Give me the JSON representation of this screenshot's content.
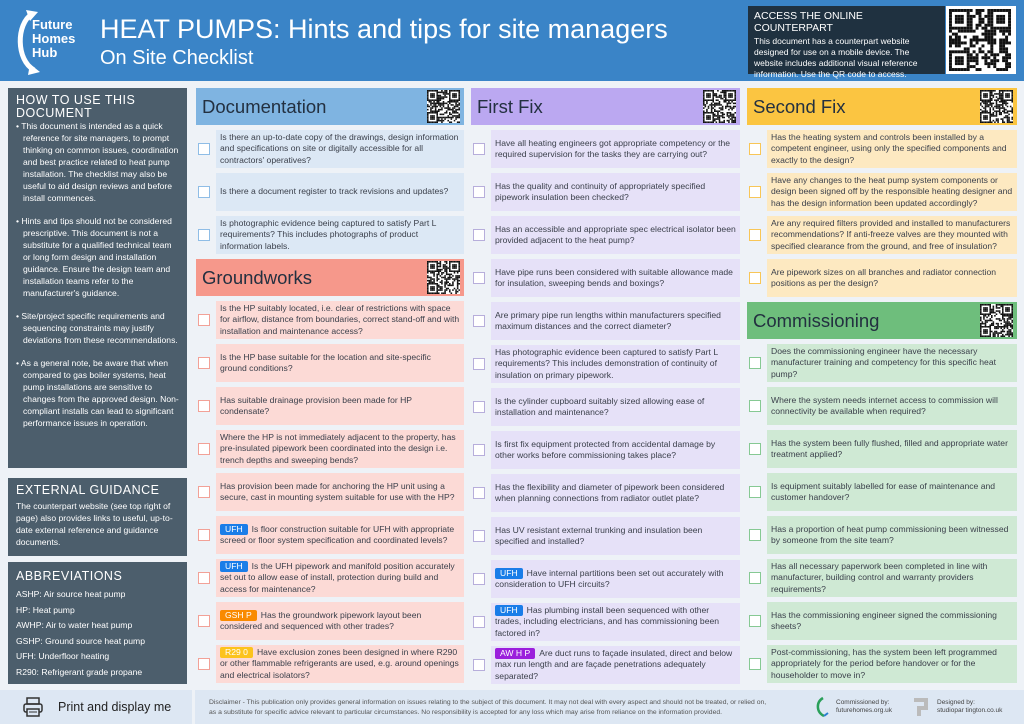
{
  "header": {
    "logo_text": "Future Homes Hub",
    "title": "HEAT PUMPS: Hints and tips for site managers",
    "subtitle": "On Site Checklist",
    "online": {
      "title": "ACCESS THE ONLINE COUNTERPART",
      "text": "This document has a counterpart website designed for use on a mobile device. The website includes additional visual reference information. Use the QR code to access."
    }
  },
  "sidebar": {
    "how": {
      "title": "HOW TO USE THIS DOCUMENT",
      "bullets": [
        "• This document is intended as a quick reference for site managers, to prompt thinking on common issues, coordination and best practice related to heat pump installation. The checklist may also be useful to aid design reviews and before install commences.",
        "• Hints and tips should not be considered prescriptive. This document is not a substitute for a qualified technical team or long form design and installation guidance. Ensure the design team and installation teams refer to the manufacturer's guidance.",
        "• Site/project specific requirements and sequencing constraints may justify deviations from these recommendations.",
        "• As a general note, be aware that when compared to gas boiler systems, heat pump installations are sensitive to changes from the approved design. Non-compliant installs can lead to significant performance issues in operation."
      ]
    },
    "external": {
      "title": "EXTERNAL GUIDANCE",
      "text": "The counterpart website (see top right of page) also provides links to useful, up-to-date external reference and guidance documents."
    },
    "abbrev": {
      "title": "ABBREVIATIONS",
      "items": [
        "ASHP: Air source heat pump",
        "HP: Heat pump",
        "AWHP: Air to water heat pump",
        "GSHP: Ground source heat pump",
        "UFH: Underfloor heating",
        "R290: Refrigerant grade propane"
      ]
    },
    "print_label": "Print and display me"
  },
  "tag_colors": {
    "UFH": "#1a7de8",
    "GSH P": "#f98a00",
    "R29 0": "#fcc31d",
    "AW H P": "#9b1fdc"
  },
  "columns": [
    {
      "sections": [
        {
          "title": "Documentation",
          "head": "#7fb4e1",
          "bg": "#dce8f5",
          "box": "#8fbde6",
          "items": [
            {
              "text": "Is there an up-to-date copy of the drawings, design information and specifications on site or digitally accessible for all contractors' operatives?"
            },
            {
              "text": "Is there a document register to track revisions and updates?"
            },
            {
              "text": "Is photographic evidence being captured to satisfy Part L requirements? This includes photographs of product information labels."
            }
          ]
        },
        {
          "title": "Groundworks",
          "head": "#f6988b",
          "bg": "#fcdad6",
          "box": "#f2a197",
          "items": [
            {
              "text": "Is the HP suitably located, i.e. clear of restrictions with space for airflow, distance from boundaries, correct stand-off and with installation and maintenance access?"
            },
            {
              "text": "Is the HP base suitable for the location and site-specific ground conditions?"
            },
            {
              "text": "Has suitable drainage provision been made for HP condensate?"
            },
            {
              "text": "Where the HP is not immediately adjacent to the property, has pre-insulated pipework been coordinated into the design i.e. trench depths and sweeping bends?"
            },
            {
              "text": "Has provision been made for anchoring the HP unit using a secure, cast in mounting system suitable for use with the HP?"
            },
            {
              "tag": "UFH",
              "text": "Is floor construction suitable for UFH with appropriate screed or floor system specification and coordinated levels?"
            },
            {
              "tag": "UFH",
              "text": "Is the UFH pipework and manifold position accurately set out to allow ease of install, protection during build and access for maintenance?"
            },
            {
              "tag": "GSH P",
              "text": "Has the groundwork pipework layout been considered and sequenced with other trades?"
            },
            {
              "tag": "R29 0",
              "text": "Have exclusion zones been designed in where R290 or other flammable refrigerants are used, e.g. around openings and electrical isolators?"
            }
          ]
        }
      ]
    },
    {
      "sections": [
        {
          "title": "First Fix",
          "head": "#bba8f1",
          "bg": "#e6e1f8",
          "box": "#b7aedb",
          "items": [
            {
              "text": "Have all heating engineers got appropriate competency or the required supervision for the tasks they are carrying out?"
            },
            {
              "text": "Has the quality and continuity of appropriately specified pipework insulation been checked?"
            },
            {
              "text": "Has an accessible and appropriate spec electrical isolator been provided adjacent to the heat pump?"
            },
            {
              "text": "Have pipe runs been considered with suitable allowance made for insulation, sweeping bends and boxings?"
            },
            {
              "text": "Are primary pipe run lengths within manufacturers specified maximum distances and the correct diameter?"
            },
            {
              "text": "Has photographic evidence been captured to satisfy Part L requirements? This includes demonstration of continuity of insulation on primary pipework."
            },
            {
              "text": "Is the cylinder cupboard suitably sized allowing ease of installation and maintenance?"
            },
            {
              "text": "Is first fix equipment protected from accidental damage by other works before commissioning takes place?"
            },
            {
              "text": "Has the flexibility and diameter of pipework been considered when planning connections from radiator outlet plate?"
            },
            {
              "text": "Has UV resistant external trunking and insulation been specified and installed?"
            },
            {
              "tag": "UFH",
              "text": "Have internal partitions been set out accurately with consideration to UFH circuits?"
            },
            {
              "tag": "UFH",
              "text": "Has plumbing install been sequenced with other trades, including electricians, and has commissioning been factored in?"
            },
            {
              "tag": "AW H P",
              "text": "Are duct runs to façade insulated, direct and below max run length and are façade penetrations adequately separated?"
            }
          ]
        }
      ]
    },
    {
      "sections": [
        {
          "title": "Second Fix",
          "head": "#fbc541",
          "bg": "#fde9c1",
          "box": "#f8c657",
          "items": [
            {
              "text": "Has the heating system and controls been installed by a competent engineer, using only the specified components and exactly to the design?"
            },
            {
              "text": "Have any changes to the heat pump system components or design been signed off by the responsible heating designer and has the design information been updated accordingly?"
            },
            {
              "text": "Are any required filters provided and installed to manufacturers recommendations? If anti-freeze valves are they mounted with specified clearance from the ground, and free of insulation?"
            },
            {
              "text": "Are pipework sizes on all branches and radiator connection positions as per the design?"
            }
          ]
        },
        {
          "title": "Commissioning",
          "head": "#6ebe7c",
          "bg": "#cfe9d4",
          "box": "#86c993",
          "items": [
            {
              "text": "Does the commissioning engineer have the necessary manufacturer training and competency for this specific heat pump?"
            },
            {
              "text": "Where the system needs internet access to commission will connectivity be available when required?"
            },
            {
              "text": "Has the system been fully flushed, filled and appropriate water treatment applied?"
            },
            {
              "text": "Is equipment suitably labelled for ease of maintenance and customer handover?"
            },
            {
              "text": "Has a proportion of heat pump commissioning been witnessed by someone from the site team?"
            },
            {
              "text": "Has all necessary paperwork been completed in line with manufacturer, building control and warranty providers requirements?"
            },
            {
              "text": "Has the commissioning engineer signed the commissioning sheets?"
            },
            {
              "text": "Post-commissioning, has the system been left programmed appropriately for the period before handover or for the householder to move in?"
            }
          ]
        }
      ]
    }
  ],
  "footer": {
    "disclaimer": "Disclaimer - This publication only provides general information on issues relating to the subject of this document. It may not deal with every aspect and should not be treated, or relied on, as a substitute for specific advice relevant to particular circumstances. No responsibility is accepted for any loss which may arise from reliance on the information provided.",
    "commissioned_label": "Commissioned by:",
    "commissioned_url": "futurehomes.org.uk",
    "designed_label": "Designed by:",
    "designed_url": "studiopar tington.co.uk"
  }
}
